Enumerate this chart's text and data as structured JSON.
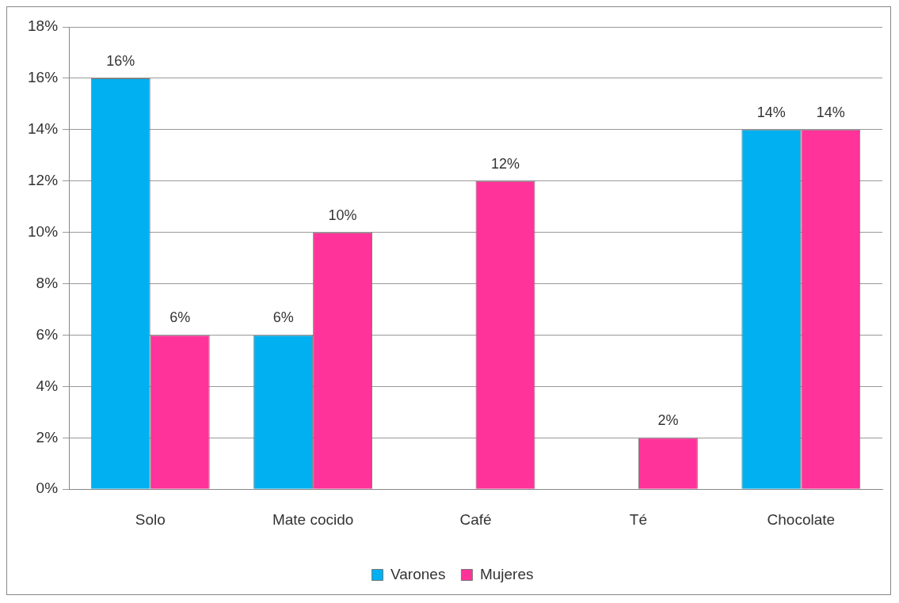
{
  "chart_data": {
    "type": "bar",
    "categories": [
      "Solo",
      "Mate cocido",
      "Café",
      "Té",
      "Chocolate"
    ],
    "series": [
      {
        "name": "Varones",
        "color": "#00b0f0",
        "values": [
          16,
          6,
          0,
          0,
          14
        ],
        "value_labels": [
          "16%",
          "6%",
          null,
          null,
          "14%"
        ]
      },
      {
        "name": "Mujeres",
        "color": "#ff3399",
        "values": [
          6,
          10,
          12,
          2,
          14
        ],
        "value_labels": [
          "6%",
          "10%",
          "12%",
          "2%",
          "14%"
        ]
      }
    ],
    "ylim": [
      0,
      18
    ],
    "yticks": [
      {
        "value": 0,
        "label": "0%"
      },
      {
        "value": 2,
        "label": "2%"
      },
      {
        "value": 4,
        "label": "4%"
      },
      {
        "value": 6,
        "label": "6%"
      },
      {
        "value": 8,
        "label": "8%"
      },
      {
        "value": 10,
        "label": "10%"
      },
      {
        "value": 12,
        "label": "12%"
      },
      {
        "value": 14,
        "label": "14%"
      },
      {
        "value": 16,
        "label": "16%"
      },
      {
        "value": 18,
        "label": "18%"
      }
    ],
    "grid": "y",
    "legend": "bottom"
  }
}
